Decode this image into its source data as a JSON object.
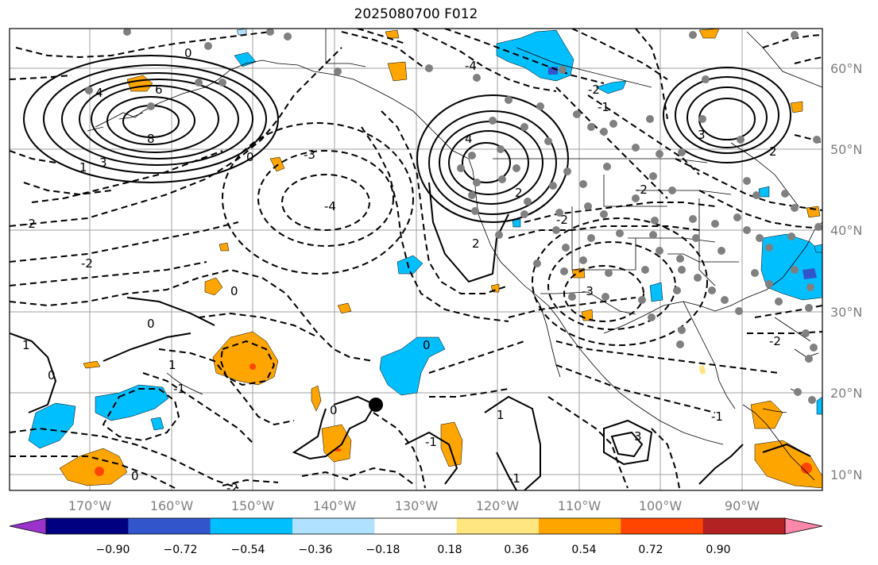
{
  "title": "2025080700 F012",
  "map": {
    "lon_ticks": [
      "170°W",
      "160°W",
      "150°W",
      "140°W",
      "130°W",
      "120°W",
      "110°W",
      "100°W",
      "90°W"
    ],
    "lat_ticks": [
      "60°N",
      "50°N",
      "40°N",
      "30°N",
      "20°N",
      "10°N"
    ]
  },
  "colorbar": {
    "labels": [
      "−0.90",
      "−0.72",
      "−0.54",
      "−0.36",
      "−0.18",
      "0.18",
      "0.36",
      "0.54",
      "0.72",
      "0.90"
    ],
    "colors": [
      "#9933cc",
      "#000080",
      "#3355cc",
      "#00bfff",
      "#b0e2ff",
      "#ffffff",
      "#ffe680",
      "#ffa500",
      "#ff4500",
      "#b22222",
      "#ff88aa"
    ]
  },
  "contour_labels": {
    "c1": "0",
    "c2": "4",
    "c3": "6",
    "c4": "8",
    "c5": "1",
    "c6": "3",
    "c7": "0",
    "c8": "-4",
    "c9": "-3",
    "c10": "-2",
    "c11": "-2",
    "c12": "0",
    "c13": "0",
    "c14": "1",
    "c15": "0",
    "c16": "-1",
    "c17": "1",
    "c18": "-2",
    "c19": "4",
    "c20": "2",
    "c21": "2",
    "c22": "-3",
    "c23": "-2",
    "c24": "3",
    "c25": "2",
    "c26": "-1",
    "c27": "0",
    "c28": "-2",
    "c29": "1",
    "c30": "-1",
    "c31": "3",
    "c32": "-2",
    "c33": "0",
    "c34": "0",
    "c35": "-1",
    "c36": "-2",
    "c37": "-4",
    "c38": "-1"
  }
}
